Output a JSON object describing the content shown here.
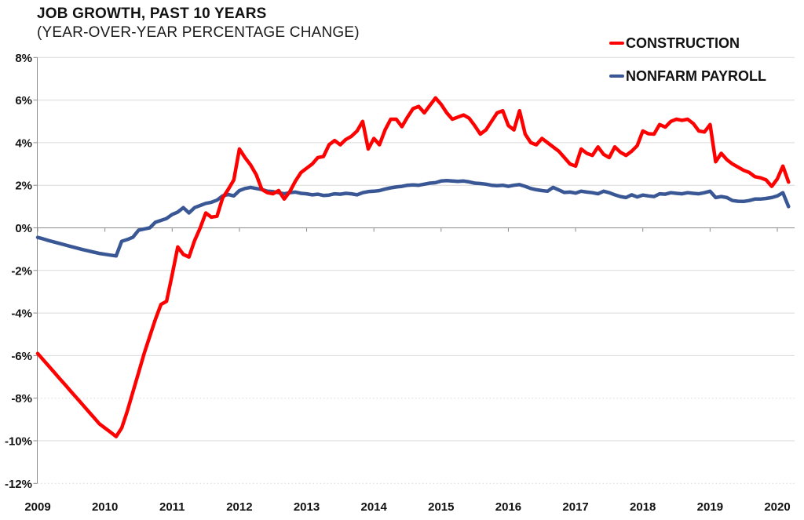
{
  "header": {
    "title": "JOB GROWTH, PAST 10 YEARS",
    "subtitle": "(YEAR-OVER-YEAR PERCENTAGE CHANGE)"
  },
  "legend": {
    "items": [
      {
        "label": "CONSTRUCTION",
        "color": "#ff0000"
      },
      {
        "label": "NONFARM PAYROLL",
        "color": "#3a5795"
      }
    ],
    "position": "top-right"
  },
  "chart_data": {
    "type": "line",
    "title": "JOB GROWTH, PAST 10 YEARS",
    "subtitle": "(YEAR-OVER-YEAR PERCENTAGE CHANGE)",
    "x_start": "2009-01",
    "x_end": "2020-03",
    "frequency": "monthly",
    "x_ticks": [
      2009,
      2010,
      2011,
      2012,
      2013,
      2014,
      2015,
      2016,
      2017,
      2018,
      2019,
      2020
    ],
    "y_ticks": [
      8,
      6,
      4,
      2,
      0,
      -2,
      -4,
      -6,
      -8,
      -10,
      -12
    ],
    "y_tick_labels": [
      "8%",
      "6%",
      "4%",
      "2%",
      "0%",
      "-2%",
      "-4%",
      "-6%",
      "-8%",
      "-10%",
      "-12%"
    ],
    "ylim": [
      -12,
      8
    ],
    "y_unit": "percent",
    "grid": {
      "dotted_levels": [
        -8,
        -12
      ]
    },
    "legend_position": "top-right",
    "series": [
      {
        "name": "CONSTRUCTION",
        "color": "#ff0000",
        "values": [
          -5.9,
          -6.2,
          -6.5,
          -6.8,
          -7.1,
          -7.4,
          -7.7,
          -8.0,
          -8.3,
          -8.6,
          -8.9,
          -9.2,
          -9.4,
          -9.6,
          -9.8,
          -9.4,
          -8.6,
          -7.7,
          -6.8,
          -5.9,
          -5.1,
          -4.3,
          -3.6,
          -3.45,
          -2.2,
          -0.9,
          -1.25,
          -1.37,
          -0.6,
          0.0,
          0.7,
          0.5,
          0.55,
          1.4,
          1.8,
          2.25,
          3.7,
          3.3,
          2.95,
          2.5,
          1.8,
          1.65,
          1.6,
          1.75,
          1.35,
          1.7,
          2.2,
          2.6,
          2.8,
          3.0,
          3.3,
          3.35,
          3.9,
          4.1,
          3.9,
          4.15,
          4.3,
          4.55,
          5.0,
          3.7,
          4.2,
          3.9,
          4.6,
          5.1,
          5.1,
          4.75,
          5.2,
          5.6,
          5.7,
          5.4,
          5.75,
          6.1,
          5.8,
          5.4,
          5.1,
          5.2,
          5.3,
          5.15,
          4.8,
          4.4,
          4.6,
          5.0,
          5.4,
          5.5,
          4.8,
          4.6,
          5.5,
          4.4,
          4.0,
          3.9,
          4.2,
          4.0,
          3.8,
          3.6,
          3.3,
          3.0,
          2.9,
          3.7,
          3.5,
          3.4,
          3.8,
          3.45,
          3.3,
          3.8,
          3.55,
          3.4,
          3.6,
          3.86,
          4.55,
          4.42,
          4.4,
          4.85,
          4.73,
          5.0,
          5.1,
          5.05,
          5.1,
          4.9,
          4.55,
          4.5,
          4.85,
          3.1,
          3.5,
          3.2,
          3.0,
          2.85,
          2.7,
          2.6,
          2.4,
          2.35,
          2.25,
          1.95,
          2.3,
          2.9,
          2.15
        ]
      },
      {
        "name": "NONFARM PAYROLL",
        "color": "#3a5795",
        "values": [
          -0.45,
          -0.52,
          -0.6,
          -0.67,
          -0.74,
          -0.81,
          -0.88,
          -0.95,
          -1.02,
          -1.08,
          -1.14,
          -1.2,
          -1.24,
          -1.28,
          -1.32,
          -0.63,
          -0.55,
          -0.44,
          -0.11,
          -0.05,
          0.0,
          0.26,
          0.35,
          0.44,
          0.63,
          0.74,
          0.95,
          0.7,
          0.95,
          1.05,
          1.15,
          1.2,
          1.3,
          1.5,
          1.57,
          1.5,
          1.75,
          1.85,
          1.9,
          1.85,
          1.8,
          1.72,
          1.7,
          1.65,
          1.6,
          1.65,
          1.68,
          1.62,
          1.6,
          1.55,
          1.58,
          1.52,
          1.54,
          1.6,
          1.58,
          1.62,
          1.6,
          1.55,
          1.65,
          1.7,
          1.72,
          1.75,
          1.82,
          1.88,
          1.92,
          1.95,
          2.0,
          2.02,
          2.0,
          2.05,
          2.1,
          2.12,
          2.2,
          2.22,
          2.2,
          2.18,
          2.2,
          2.16,
          2.1,
          2.08,
          2.05,
          2.0,
          1.98,
          2.0,
          1.95,
          2.0,
          2.03,
          1.95,
          1.85,
          1.79,
          1.75,
          1.72,
          1.9,
          1.78,
          1.66,
          1.68,
          1.63,
          1.72,
          1.68,
          1.65,
          1.6,
          1.72,
          1.65,
          1.55,
          1.47,
          1.42,
          1.55,
          1.45,
          1.54,
          1.5,
          1.47,
          1.6,
          1.58,
          1.65,
          1.62,
          1.6,
          1.65,
          1.62,
          1.6,
          1.65,
          1.72,
          1.42,
          1.47,
          1.42,
          1.28,
          1.25,
          1.24,
          1.28,
          1.35,
          1.35,
          1.38,
          1.42,
          1.5,
          1.65,
          1.0
        ]
      }
    ]
  }
}
